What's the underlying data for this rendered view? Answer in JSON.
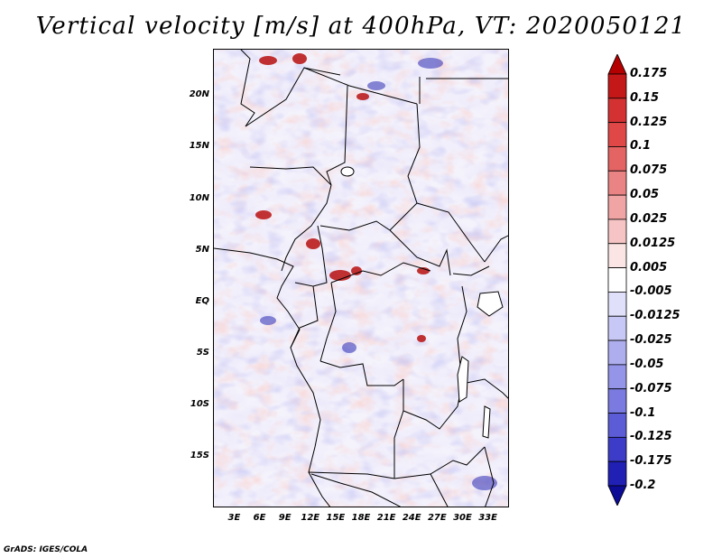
{
  "title": "Vertical velocity [m/s] at 400hPa, VT: 2020050121",
  "footer": "GrADS: IGES/COLA",
  "map": {
    "lat_labels": [
      "20N",
      "15N",
      "10N",
      "5N",
      "EQ",
      "5S",
      "10S",
      "15S"
    ],
    "lat_values": [
      20,
      15,
      10,
      5,
      0,
      -5,
      -10,
      -15
    ],
    "lon_labels": [
      "3E",
      "6E",
      "9E",
      "12E",
      "15E",
      "18E",
      "21E",
      "24E",
      "27E",
      "30E",
      "33E"
    ],
    "lon_values": [
      3,
      6,
      9,
      12,
      15,
      18,
      21,
      24,
      27,
      30,
      33
    ],
    "lat_range": [
      -20,
      24.5
    ],
    "lon_range": [
      0.5,
      35.5
    ]
  },
  "colorbar": {
    "labels": [
      "0.175",
      "0.15",
      "0.125",
      "0.1",
      "0.075",
      "0.05",
      "0.025",
      "0.0125",
      "0.005",
      "-0.005",
      "-0.0125",
      "-0.025",
      "-0.05",
      "-0.075",
      "-0.1",
      "-0.125",
      "-0.175",
      "-0.2"
    ],
    "colors": [
      "#b40000",
      "#c41818",
      "#d43232",
      "#e04848",
      "#e46464",
      "#ea8484",
      "#f0a4a4",
      "#f6c4c4",
      "#fbe4e4",
      "#ffffff",
      "#e0e0fa",
      "#c8c8f6",
      "#aeaeee",
      "#9494e8",
      "#7a7ae0",
      "#5c5cd6",
      "#3c3cc8",
      "#2020b4",
      "#0c0c96"
    ]
  }
}
